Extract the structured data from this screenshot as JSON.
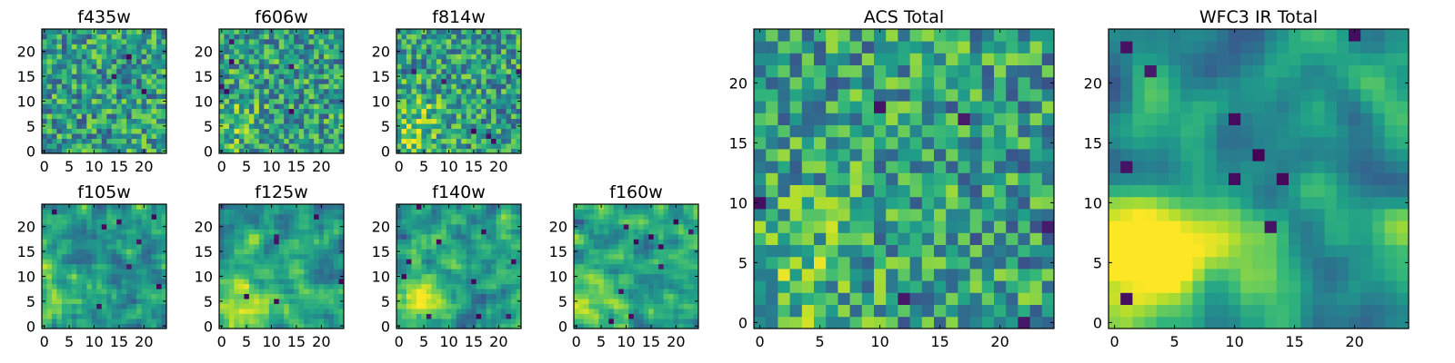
{
  "chart_data": [
    {
      "type": "heatmap",
      "title": "f435w",
      "xlim": [
        0,
        24
      ],
      "ylim": [
        0,
        24
      ],
      "xticks": [
        "0",
        "5",
        "10",
        "15",
        "20"
      ],
      "yticks": [
        "0",
        "5",
        "10",
        "15",
        "20"
      ],
      "colormap": "viridis",
      "seed": 11,
      "smooth": 0,
      "blob": 0.0,
      "holes": 3
    },
    {
      "type": "heatmap",
      "title": "f606w",
      "xlim": [
        0,
        24
      ],
      "ylim": [
        0,
        24
      ],
      "xticks": [
        "0",
        "5",
        "10",
        "15",
        "20"
      ],
      "yticks": [
        "0",
        "5",
        "10",
        "15",
        "20"
      ],
      "colormap": "viridis",
      "seed": 23,
      "smooth": 0,
      "blob": 0.25,
      "holes": 6
    },
    {
      "type": "heatmap",
      "title": "f814w",
      "xlim": [
        0,
        24
      ],
      "ylim": [
        0,
        24
      ],
      "xticks": [
        "0",
        "5",
        "10",
        "15",
        "20"
      ],
      "yticks": [
        "0",
        "5",
        "10",
        "15",
        "20"
      ],
      "colormap": "viridis",
      "seed": 37,
      "smooth": 0,
      "blob": 0.45,
      "holes": 6
    },
    {
      "type": "heatmap",
      "title": "f105w",
      "xlim": [
        0,
        24
      ],
      "ylim": [
        0,
        24
      ],
      "xticks": [
        "0",
        "5",
        "10",
        "15",
        "20"
      ],
      "yticks": [
        "0",
        "5",
        "10",
        "15",
        "20"
      ],
      "colormap": "viridis",
      "seed": 41,
      "smooth": 1,
      "blob": 0.5,
      "holes": 8
    },
    {
      "type": "heatmap",
      "title": "f125w",
      "xlim": [
        0,
        24
      ],
      "ylim": [
        0,
        24
      ],
      "xticks": [
        "0",
        "5",
        "10",
        "15",
        "20"
      ],
      "yticks": [
        "0",
        "5",
        "10",
        "15",
        "20"
      ],
      "colormap": "viridis",
      "seed": 53,
      "smooth": 1,
      "blob": 0.55,
      "holes": 6
    },
    {
      "type": "heatmap",
      "title": "f140w",
      "xlim": [
        0,
        24
      ],
      "ylim": [
        0,
        24
      ],
      "xticks": [
        "0",
        "5",
        "10",
        "15",
        "20"
      ],
      "yticks": [
        "0",
        "5",
        "10",
        "15",
        "20"
      ],
      "colormap": "viridis",
      "seed": 67,
      "smooth": 1,
      "blob": 0.55,
      "holes": 10
    },
    {
      "type": "heatmap",
      "title": "f160w",
      "xlim": [
        0,
        24
      ],
      "ylim": [
        0,
        24
      ],
      "xticks": [
        "0",
        "5",
        "10",
        "15",
        "20"
      ],
      "yticks": [
        "0",
        "5",
        "10",
        "15",
        "20"
      ],
      "colormap": "viridis",
      "seed": 79,
      "smooth": 1,
      "blob": 0.6,
      "holes": 10
    },
    {
      "type": "heatmap",
      "title": "ACS Total",
      "xlim": [
        0,
        24
      ],
      "ylim": [
        0,
        24
      ],
      "xticks": [
        "0",
        "5",
        "10",
        "15",
        "20"
      ],
      "yticks": [
        "0",
        "5",
        "10",
        "15",
        "20"
      ],
      "colormap": "viridis",
      "seed": 97,
      "smooth": 0,
      "blob": 0.3,
      "holes": 6
    },
    {
      "type": "heatmap",
      "title": "WFC3 IR Total",
      "xlim": [
        0,
        24
      ],
      "ylim": [
        0,
        24
      ],
      "xticks": [
        "0",
        "5",
        "10",
        "15",
        "20"
      ],
      "yticks": [
        "0",
        "5",
        "10",
        "15",
        "20"
      ],
      "colormap": "viridis",
      "seed": 101,
      "smooth": 2,
      "blob": 1.0,
      "holes": 10
    }
  ]
}
